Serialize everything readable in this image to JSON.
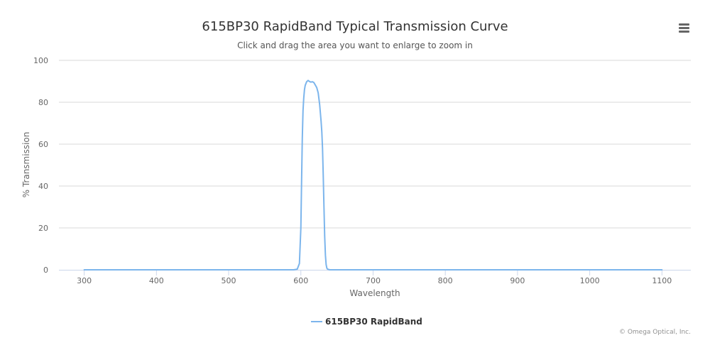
{
  "header": {
    "title": "615BP30 RapidBand Typical Transmission Curve",
    "subtitle": "Click and drag the area you want to enlarge to zoom in"
  },
  "credits": "© Omega Optical, Inc.",
  "menu": {
    "icon": "hamburger-menu-icon"
  },
  "colors": {
    "series": "#7cb5ec",
    "grid": "#d8d8d8",
    "axis": "#ccd6eb"
  },
  "chart_data": {
    "type": "line",
    "title": "615BP30 RapidBand Typical Transmission Curve",
    "subtitle": "Click and drag the area you want to enlarge to zoom in",
    "xlabel": "Wavelength",
    "ylabel": "% Transmission",
    "xlim": [
      265,
      1140
    ],
    "ylim": [
      0,
      100
    ],
    "xticks": [
      300,
      400,
      500,
      600,
      700,
      800,
      900,
      1000,
      1100
    ],
    "yticks": [
      0,
      20,
      40,
      60,
      80,
      100
    ],
    "grid": true,
    "legend": "bottom-center",
    "series": [
      {
        "name": "615BP30 RapidBand",
        "color": "#7cb5ec",
        "x": [
          300,
          500,
          590,
          595,
          598,
          600,
          601,
          602,
          603,
          604,
          605,
          606,
          608,
          610,
          612,
          614,
          616,
          618,
          620,
          622,
          624,
          626,
          628,
          629,
          630,
          631,
          632,
          633,
          634,
          635,
          636,
          637,
          640,
          700,
          1100
        ],
        "y": [
          0,
          0,
          0,
          0.3,
          3,
          20,
          42,
          63,
          76,
          82,
          86,
          88,
          89.8,
          90.4,
          89.9,
          89.6,
          89.8,
          89.4,
          88.2,
          87,
          84.5,
          79,
          71,
          66,
          58,
          45,
          30,
          16,
          7,
          2.5,
          0.8,
          0.3,
          0,
          0,
          0
        ]
      }
    ]
  }
}
